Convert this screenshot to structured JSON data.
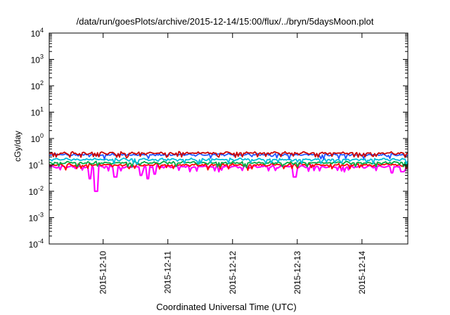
{
  "chart_data": {
    "type": "line",
    "title": "/data/run/goesPlots/archive/2015-12-14/15:00/flux/../bryn/5daysMoon.plot",
    "xlabel": "Coordinated Universal Time (UTC)",
    "ylabel": "cGy/day",
    "yscale": "log",
    "ylim": [
      0.0001,
      10000
    ],
    "xlim": [
      "2015-12-09T04:00",
      "2015-12-14T17:00"
    ],
    "x_ticks": [
      "2015-12-10",
      "2015-12-11",
      "2015-12-12",
      "2015-12-13",
      "2015-12-14"
    ],
    "y_ticks": [
      {
        "base": "10",
        "exp": "4"
      },
      {
        "base": "10",
        "exp": "3"
      },
      {
        "base": "10",
        "exp": "2"
      },
      {
        "base": "10",
        "exp": "1"
      },
      {
        "base": "10",
        "exp": "0"
      },
      {
        "base": "10",
        "exp": "-1"
      },
      {
        "base": "10",
        "exp": "-2"
      },
      {
        "base": "10",
        "exp": "-3"
      },
      {
        "base": "10",
        "exp": "-4"
      }
    ],
    "grid": false,
    "legend": false,
    "series": [
      {
        "color": "#ff00ff",
        "baseline": 0.085,
        "dips": [
          {
            "x": "2015-12-09T21:20",
            "y": 0.01
          },
          {
            "x": "2015-12-09T19:00",
            "y": 0.03
          },
          {
            "x": "2015-12-10T04:30",
            "y": 0.035
          },
          {
            "x": "2015-12-10T14:00",
            "y": 0.04
          },
          {
            "x": "2015-12-10T16:30",
            "y": 0.03
          },
          {
            "x": "2015-12-10T19:00",
            "y": 0.045
          },
          {
            "x": "2015-12-12T23:00",
            "y": 0.035
          },
          {
            "x": "2015-12-14T11:00",
            "y": 0.05
          },
          {
            "x": "2015-12-14T15:00",
            "y": 0.055
          }
        ]
      },
      {
        "color": "#ff0000",
        "baseline": 0.1
      },
      {
        "color": "#00aa44",
        "baseline": 0.12
      },
      {
        "color": "#00bbdd",
        "baseline": 0.16
      },
      {
        "color": "#2255ff",
        "baseline": 0.24
      },
      {
        "color": "#cc0000",
        "baseline": 0.28
      }
    ]
  }
}
